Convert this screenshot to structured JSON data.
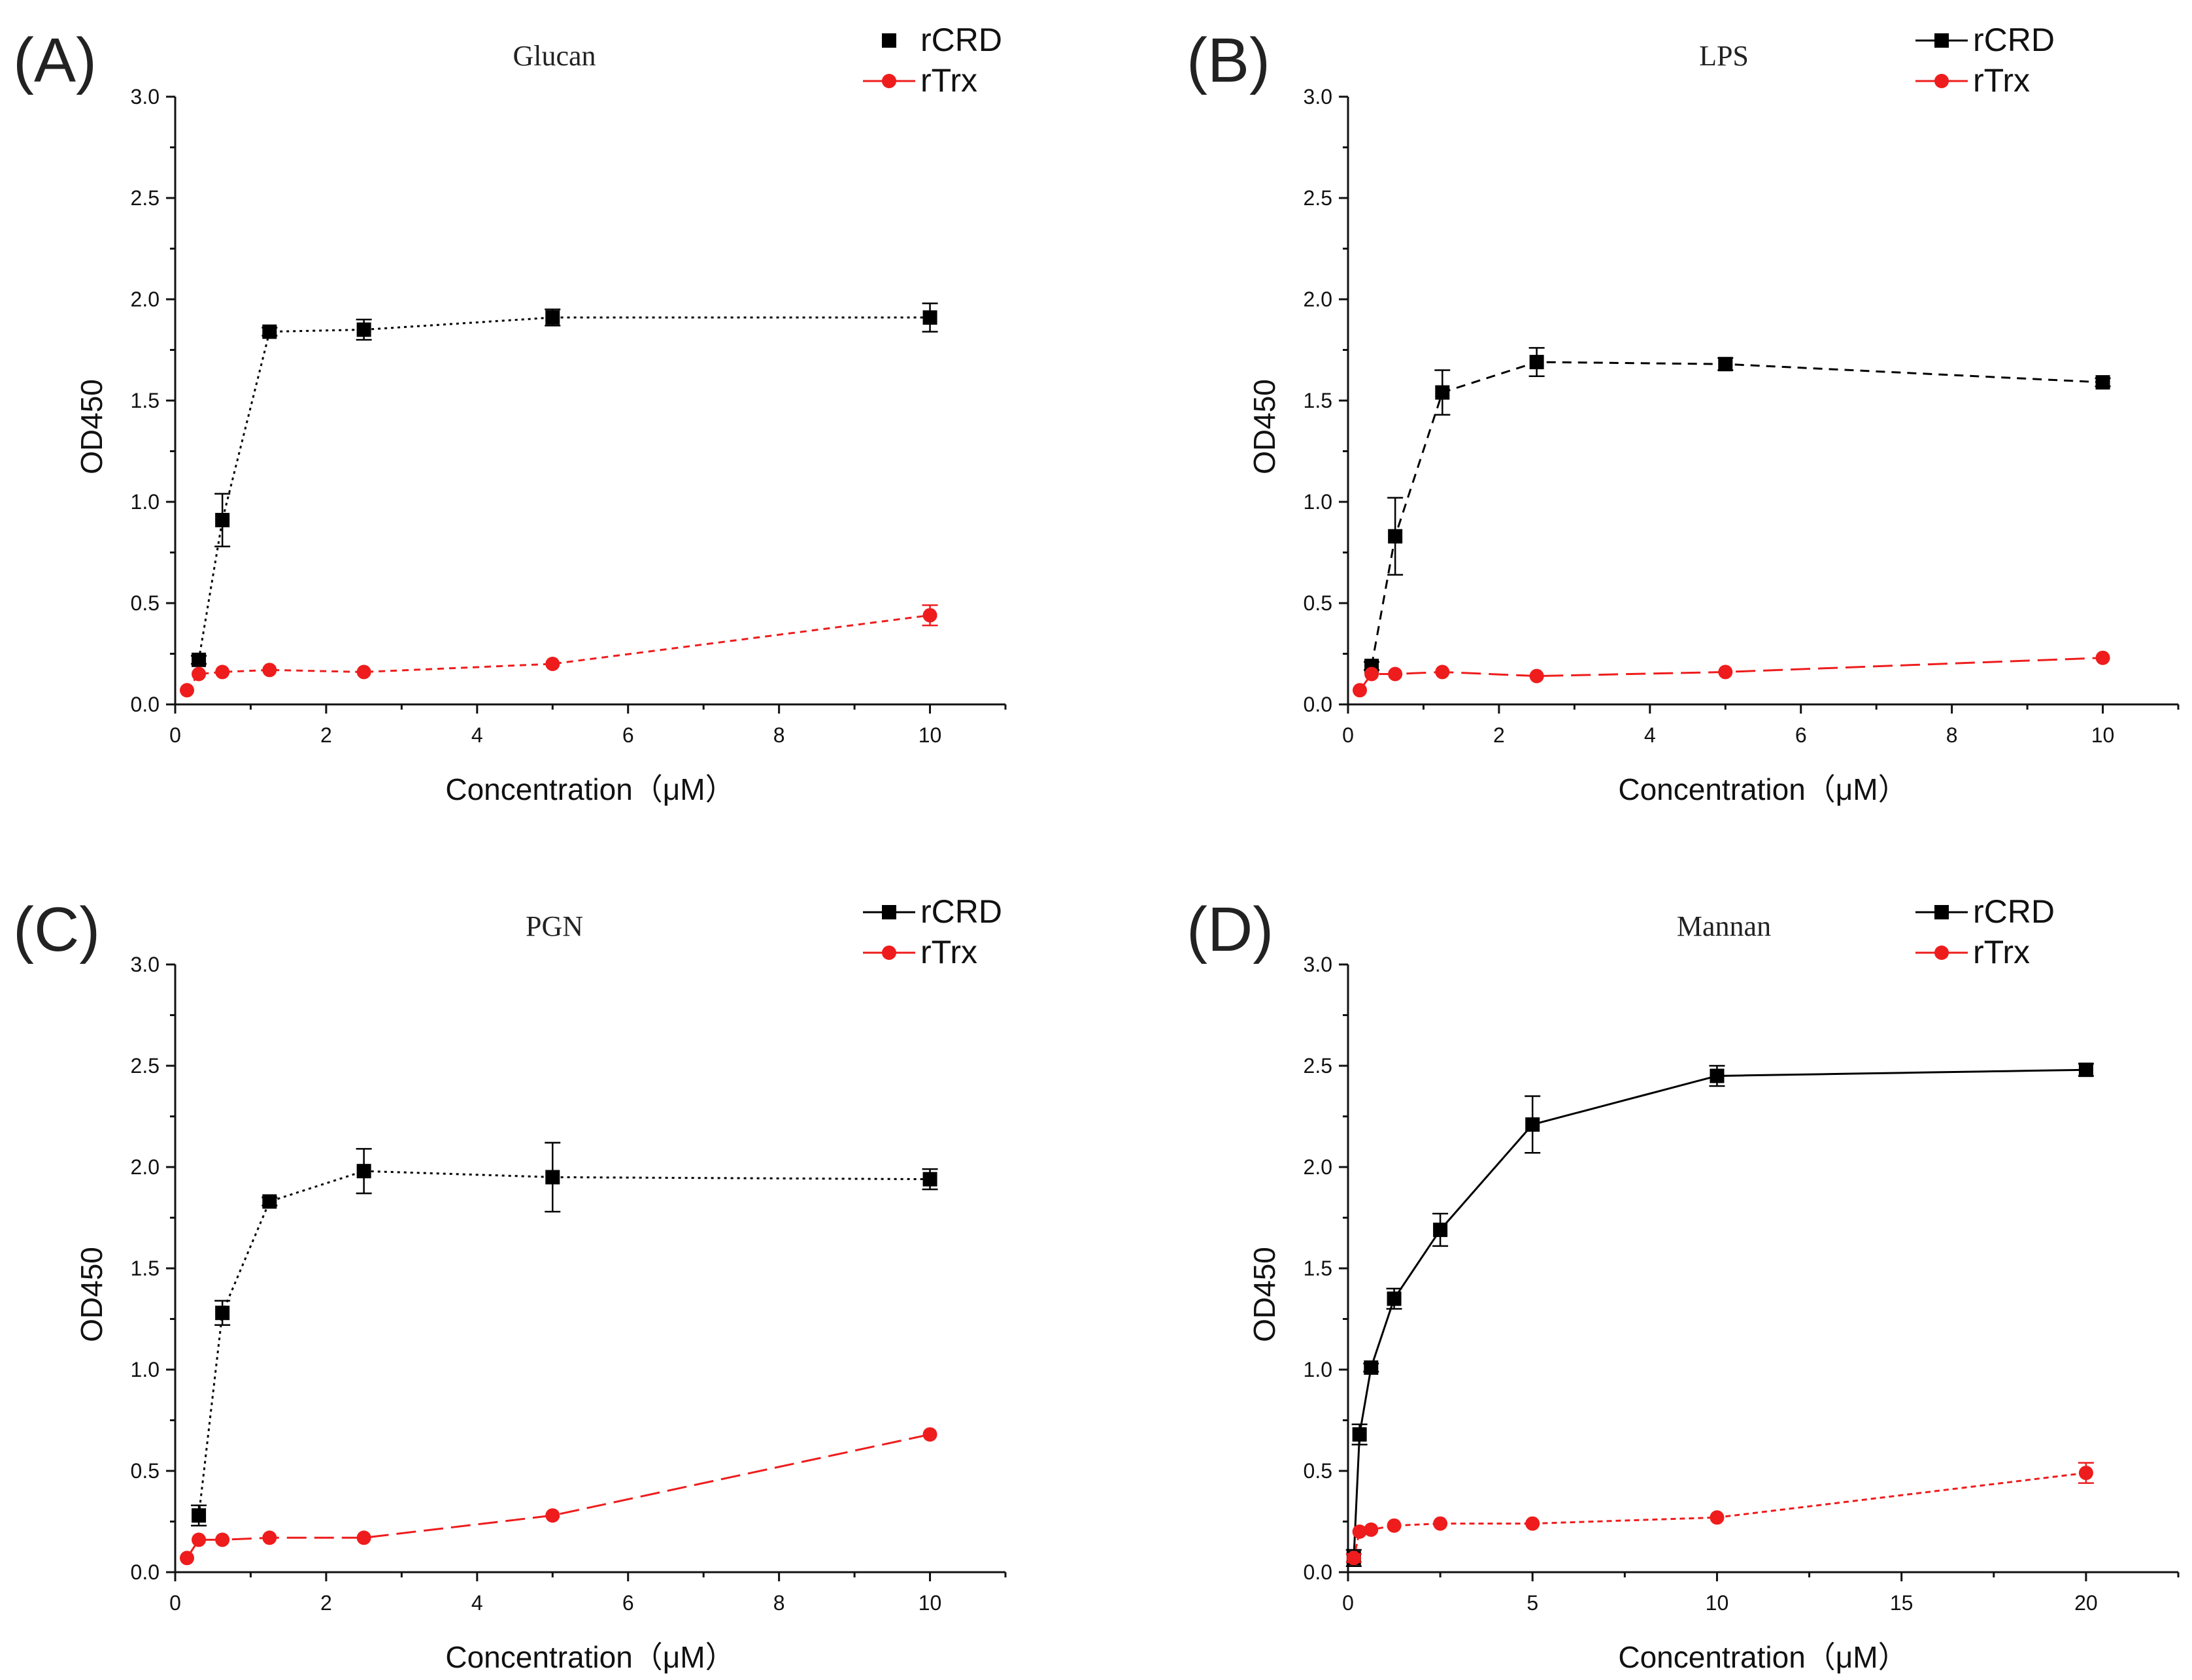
{
  "series_colors": {
    "rCRD": "#000000",
    "rTrx": "#ee1c1c"
  },
  "chart_data": [
    {
      "panel": "(A)",
      "type": "line",
      "title": "Glucan",
      "xlabel": "Concentration（μM）",
      "ylabel": "OD450",
      "xlim": [
        0,
        11
      ],
      "ylim": [
        0,
        3.0
      ],
      "xticks": [
        0,
        2,
        4,
        6,
        8,
        10
      ],
      "yticks": [
        0.0,
        0.5,
        1.0,
        1.5,
        2.0,
        2.5,
        3.0
      ],
      "ytick_labels": [
        "0.0",
        "0.5",
        "1.0",
        "1.5",
        "2.0",
        "2.5",
        "3.0"
      ],
      "legend": [
        "rCRD",
        "rTrx"
      ],
      "series": [
        {
          "name": "rCRD",
          "x": [
            0.3125,
            0.625,
            1.25,
            2.5,
            5,
            10
          ],
          "y": [
            0.22,
            0.91,
            1.84,
            1.85,
            1.91,
            1.91
          ],
          "err": [
            0.02,
            0.13,
            0.02,
            0.05,
            0.04,
            0.07
          ]
        },
        {
          "name": "rTrx",
          "x": [
            0.156,
            0.3125,
            0.625,
            1.25,
            2.5,
            5,
            10
          ],
          "y": [
            0.07,
            0.15,
            0.16,
            0.17,
            0.16,
            0.2,
            0.44
          ],
          "err": [
            0.01,
            0.01,
            0.01,
            0.01,
            0.01,
            0.01,
            0.05
          ]
        }
      ]
    },
    {
      "panel": "(B)",
      "type": "line",
      "title": "LPS",
      "xlabel": "Concentration（μM）",
      "ylabel": "OD450",
      "xlim": [
        0,
        11
      ],
      "ylim": [
        0,
        3.0
      ],
      "xticks": [
        0,
        2,
        4,
        6,
        8,
        10
      ],
      "yticks": [
        0.0,
        0.5,
        1.0,
        1.5,
        2.0,
        2.5,
        3.0
      ],
      "ytick_labels": [
        "0.0",
        "0.5",
        "1.0",
        "1.5",
        "2.0",
        "2.5",
        "3.0"
      ],
      "legend": [
        "rCRD",
        "rTrx"
      ],
      "series": [
        {
          "name": "rCRD",
          "x": [
            0.3125,
            0.625,
            1.25,
            2.5,
            5,
            10
          ],
          "y": [
            0.19,
            0.83,
            1.54,
            1.69,
            1.68,
            1.59
          ],
          "err": [
            0.02,
            0.19,
            0.11,
            0.07,
            0.03,
            0.02
          ]
        },
        {
          "name": "rTrx",
          "x": [
            0.156,
            0.3125,
            0.625,
            1.25,
            2.5,
            5,
            10
          ],
          "y": [
            0.07,
            0.15,
            0.15,
            0.16,
            0.14,
            0.16,
            0.23
          ],
          "err": [
            0.01,
            0.01,
            0.01,
            0.01,
            0.01,
            0.01,
            0.01
          ]
        }
      ]
    },
    {
      "panel": "(C)",
      "type": "line",
      "title": "PGN",
      "xlabel": "Concentration（μM）",
      "ylabel": "OD450",
      "xlim": [
        0,
        11
      ],
      "ylim": [
        0,
        3.0
      ],
      "xticks": [
        0,
        2,
        4,
        6,
        8,
        10
      ],
      "yticks": [
        0.0,
        0.5,
        1.0,
        1.5,
        2.0,
        2.5,
        3.0
      ],
      "ytick_labels": [
        "0.0",
        "0.5",
        "1.0",
        "1.5",
        "2.0",
        "2.5",
        "3.0"
      ],
      "legend": [
        "rCRD",
        "rTrx"
      ],
      "series": [
        {
          "name": "rCRD",
          "x": [
            0.3125,
            0.625,
            1.25,
            2.5,
            5,
            10
          ],
          "y": [
            0.28,
            1.28,
            1.83,
            1.98,
            1.95,
            1.94
          ],
          "err": [
            0.05,
            0.06,
            0.02,
            0.11,
            0.17,
            0.05
          ]
        },
        {
          "name": "rTrx",
          "x": [
            0.156,
            0.3125,
            0.625,
            1.25,
            2.5,
            5,
            10
          ],
          "y": [
            0.07,
            0.16,
            0.16,
            0.17,
            0.17,
            0.28,
            0.68
          ],
          "err": [
            0.01,
            0.01,
            0.01,
            0.01,
            0.01,
            0.01,
            0.01
          ]
        }
      ]
    },
    {
      "panel": "(D)",
      "type": "line",
      "title": "Mannan",
      "xlabel": "Concentration（μM）",
      "ylabel": "OD450",
      "xlim": [
        0,
        22.5
      ],
      "ylim": [
        0,
        3.0
      ],
      "xticks": [
        0,
        5,
        10,
        15,
        20
      ],
      "yticks": [
        0.0,
        0.5,
        1.0,
        1.5,
        2.0,
        2.5,
        3.0
      ],
      "ytick_labels": [
        "0.0",
        "0.5",
        "1.0",
        "1.5",
        "2.0",
        "2.5",
        "3.0"
      ],
      "legend": [
        "rCRD",
        "rTrx"
      ],
      "series": [
        {
          "name": "rCRD",
          "x": [
            0.156,
            0.3125,
            0.625,
            1.25,
            2.5,
            5,
            10,
            20
          ],
          "y": [
            0.07,
            0.68,
            1.01,
            1.35,
            1.69,
            2.21,
            2.45,
            2.48
          ],
          "err": [
            0.04,
            0.05,
            0.02,
            0.05,
            0.08,
            0.14,
            0.05,
            0.03
          ]
        },
        {
          "name": "rTrx",
          "x": [
            0.156,
            0.3125,
            0.625,
            1.25,
            2.5,
            5,
            10,
            20
          ],
          "y": [
            0.07,
            0.2,
            0.21,
            0.23,
            0.24,
            0.24,
            0.27,
            0.49
          ],
          "err": [
            0.02,
            0.01,
            0.01,
            0.01,
            0.01,
            0.01,
            0.01,
            0.05
          ]
        }
      ]
    }
  ]
}
